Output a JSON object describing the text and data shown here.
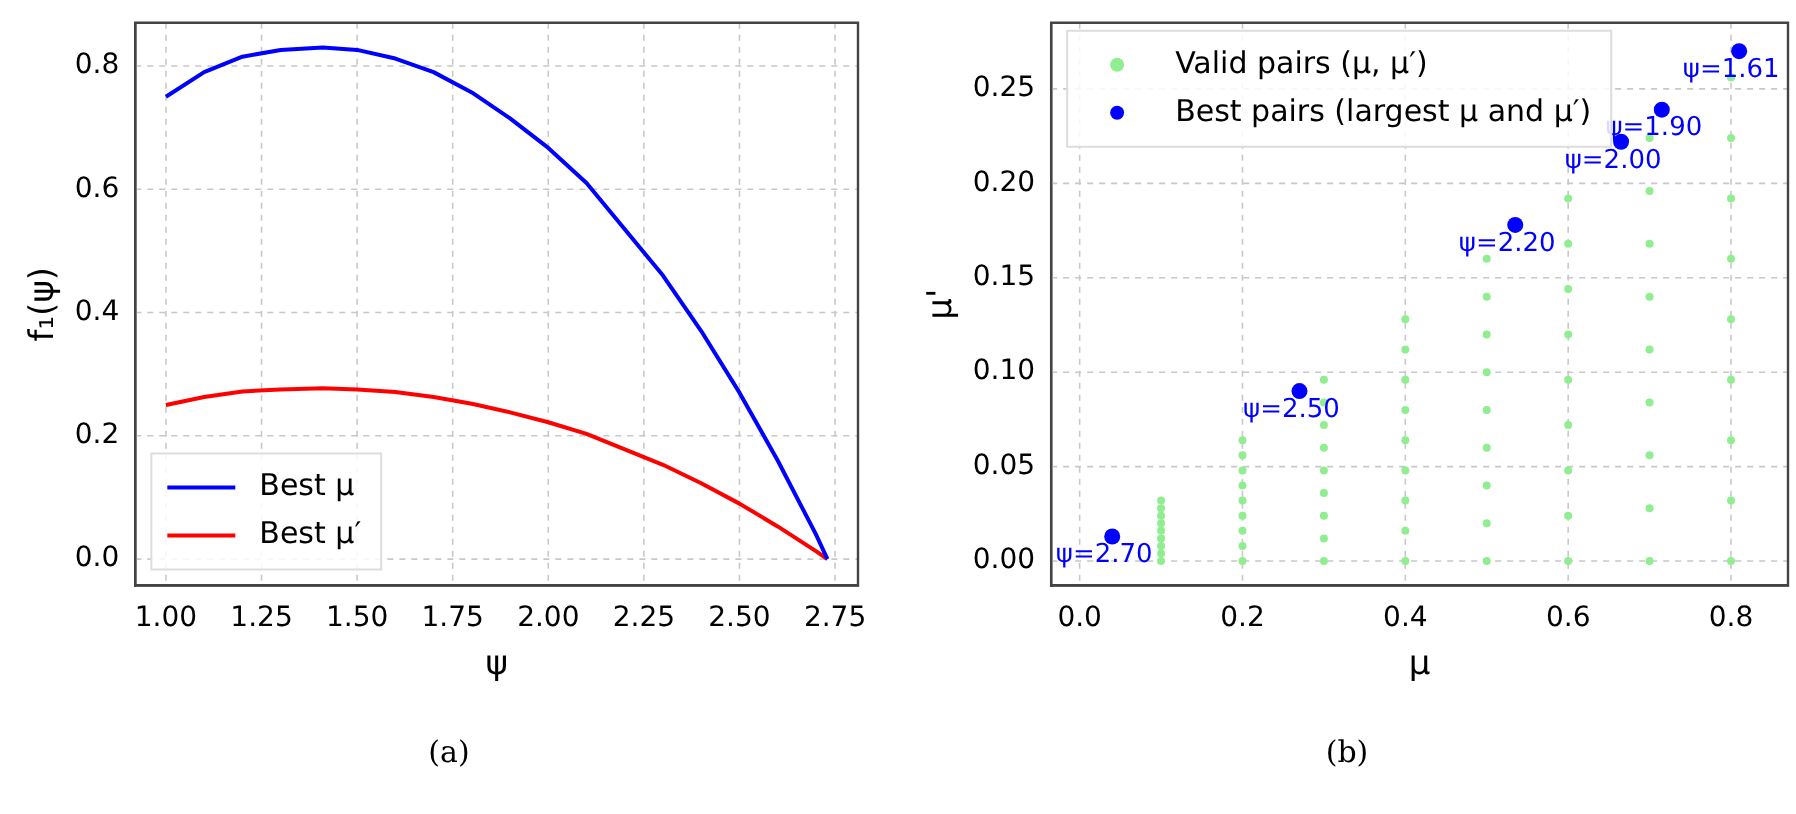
{
  "chart_data": [
    {
      "type": "line",
      "xlabel": "ψ",
      "ylabel": "f₁(ψ)",
      "annotations": [
        "(a)"
      ],
      "xlim": [
        0.92,
        2.81
      ],
      "ylim": [
        -0.043,
        0.87
      ],
      "xticks": [
        {
          "value": 1,
          "label": "1.00"
        },
        1.25,
        {
          "value": 1.5,
          "label": "1.50"
        },
        1.75,
        {
          "value": 2,
          "label": "2.00"
        },
        2.25,
        {
          "value": 2.5,
          "label": "2.50"
        },
        2.75
      ],
      "yticks": [
        {
          "value": 0,
          "label": "0.0"
        },
        0.2,
        0.4,
        0.6,
        0.8
      ],
      "x": [
        1.0,
        1.1,
        1.2,
        1.3,
        1.41,
        1.5,
        1.6,
        1.7,
        1.8,
        1.9,
        2.0,
        2.1,
        2.2,
        2.3,
        2.4,
        2.5,
        2.6,
        2.7,
        2.73
      ],
      "series": [
        {
          "name": "Best μ",
          "color": "#0000ff",
          "values": [
            0.75,
            0.79,
            0.815,
            0.826,
            0.83,
            0.826,
            0.812,
            0.79,
            0.757,
            0.715,
            0.667,
            0.61,
            0.535,
            0.46,
            0.37,
            0.27,
            0.16,
            0.04,
            0
          ]
        },
        {
          "name": "Best μ′",
          "color": "#ff0000",
          "values": [
            0.25,
            0.263,
            0.272,
            0.275,
            0.277,
            0.275,
            0.271,
            0.263,
            0.252,
            0.238,
            0.222,
            0.203,
            0.178,
            0.153,
            0.123,
            0.09,
            0.053,
            0.013,
            0
          ]
        }
      ],
      "grid": true,
      "legend": "bottom left",
      "marker": "none",
      "line_style": "solid"
    },
    {
      "type": "scatter",
      "xlabel": "μ",
      "ylabel": "μ'",
      "annotations": [
        {
          "text": "ψ=2.70",
          "x": 0.04,
          "y": 0.013
        },
        {
          "text": "ψ=2.50",
          "x": 0.27,
          "y": 0.09
        },
        {
          "text": "ψ=2.20",
          "x": 0.535,
          "y": 0.178
        },
        {
          "text": "ψ=2.00",
          "x": 0.665,
          "y": 0.222
        },
        {
          "text": "ψ=1.90",
          "x": 0.715,
          "y": 0.239
        },
        {
          "text": "ψ=1.61",
          "x": 0.81,
          "y": 0.27
        },
        "(b)"
      ],
      "xlim": [
        -0.035,
        0.87
      ],
      "ylim": [
        -0.013,
        0.285
      ],
      "xticks": [
        {
          "value": 0,
          "label": "0.0"
        },
        0.2,
        0.4,
        0.6,
        0.8
      ],
      "yticks": [
        {
          "value": 0,
          "label": "0.00"
        },
        0.05,
        {
          "value": 0.1,
          "label": "0.10"
        },
        0.15,
        {
          "value": 0.2,
          "label": "0.20"
        },
        0.25
      ],
      "series": [
        {
          "name": "Valid pairs (μ, μ′)",
          "color": "#90ee90",
          "x": [
            0.1,
            0.1,
            0.1,
            0.1,
            0.1,
            0.1,
            0.1,
            0.1,
            0.1,
            0.2,
            0.2,
            0.2,
            0.2,
            0.2,
            0.2,
            0.2,
            0.2,
            0.2,
            0.3,
            0.3,
            0.3,
            0.3,
            0.3,
            0.3,
            0.3,
            0.3,
            0.3,
            0.4,
            0.4,
            0.4,
            0.4,
            0.4,
            0.4,
            0.4,
            0.4,
            0.4,
            0.5,
            0.5,
            0.5,
            0.5,
            0.5,
            0.5,
            0.5,
            0.5,
            0.5,
            0.6,
            0.6,
            0.6,
            0.6,
            0.6,
            0.6,
            0.6,
            0.6,
            0.6,
            0.7,
            0.7,
            0.7,
            0.7,
            0.7,
            0.7,
            0.7,
            0.7,
            0.7,
            0.8,
            0.8,
            0.8,
            0.8,
            0.8,
            0.8,
            0.8,
            0.8,
            0.8
          ],
          "values": [
            0,
            0.004,
            0.008,
            0.012,
            0.016,
            0.02,
            0.024,
            0.028,
            0.032,
            0,
            0.008,
            0.016,
            0.024,
            0.032,
            0.04,
            0.048,
            0.056,
            0.064,
            0,
            0.012,
            0.024,
            0.036,
            0.048,
            0.06,
            0.072,
            0.084,
            0.096,
            0,
            0.016,
            0.032,
            0.048,
            0.064,
            0.08,
            0.096,
            0.112,
            0.128,
            0,
            0.02,
            0.04,
            0.06,
            0.08,
            0.1,
            0.12,
            0.14,
            0.16,
            0,
            0.024,
            0.048,
            0.072,
            0.096,
            0.12,
            0.144,
            0.168,
            0.192,
            0,
            0.028,
            0.056,
            0.084,
            0.112,
            0.14,
            0.168,
            0.196,
            0.224,
            0,
            0.032,
            0.064,
            0.096,
            0.128,
            0.16,
            0.192,
            0.224,
            0.256
          ]
        },
        {
          "name": "Best pairs (largest μ and μ′)",
          "color": "#0000ff",
          "x": [
            0.04,
            0.27,
            0.535,
            0.665,
            0.715,
            0.81
          ],
          "values": [
            0.013,
            0.09,
            0.178,
            0.222,
            0.239,
            0.27
          ]
        }
      ],
      "grid": true,
      "legend": "top left",
      "marker": "circle"
    }
  ]
}
